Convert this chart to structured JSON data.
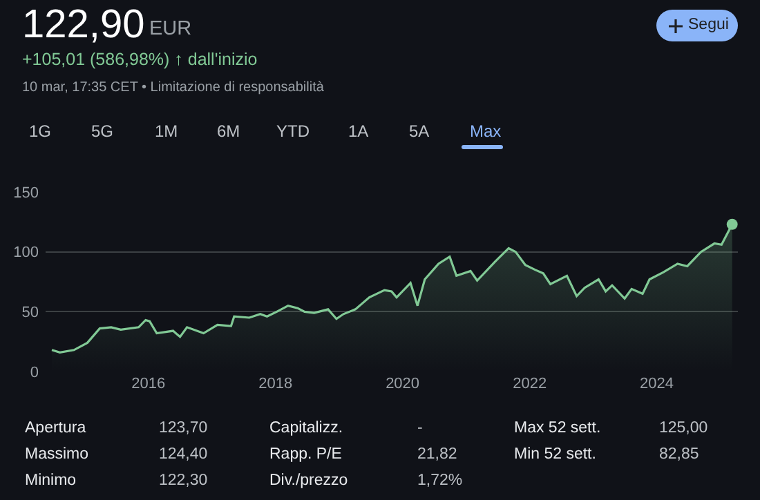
{
  "chart_data": {
    "type": "area",
    "title": "122,90",
    "subtitle": "+105,01 (586,98%) ↑ dall'inizio",
    "annotations": [
      "EUR",
      "10 mar, 17:35 CET • Limitazione di responsabilità",
      "1G",
      "5G",
      "1M",
      "6M",
      "YTD",
      "1A",
      "5A",
      "Max",
      "Segui",
      "Apertura",
      "123,70",
      "Massimo",
      "124,40",
      "Minimo",
      "122,30",
      "Capitalizz.",
      "-",
      "Rapp. P/E",
      "21,82",
      "Div./prezzo",
      "1,72%",
      "Max 52 sett.",
      "125,00",
      "Min 52 sett.",
      "82,85"
    ],
    "series": [
      {
        "color": "#81c995",
        "x": [
          "2014-06-25",
          "2014-08-10",
          "2014-10-30",
          "2015-01-15",
          "2015-03-27",
          "2015-06-01",
          "2015-07-26",
          "2015-11-06",
          "2015-12-16",
          "2016-01-08",
          "2016-02-18",
          "2016-05-22",
          "2016-07-01",
          "2016-08-10",
          "2016-11-13",
          "2017-02-01",
          "2017-04-20",
          "2017-05-08",
          "2017-08-03",
          "2017-10-05",
          "2017-11-13",
          "2018-01-08",
          "2018-03-14",
          "2018-05-08",
          "2018-06-17",
          "2018-08-11",
          "2018-10-30",
          "2018-12-17",
          "2019-01-26",
          "2019-04-05",
          "2019-06-24",
          "2019-09-19",
          "2019-10-30",
          "2019-11-28",
          "2020-02-16",
          "2020-03-27",
          "2020-05-08",
          "2020-07-26",
          "2020-09-28",
          "2020-11-06",
          "2021-01-26",
          "2021-03-05",
          "2021-06-17",
          "2021-09-02",
          "2021-10-12",
          "2021-12-07",
          "2022-02-01",
          "2022-03-20",
          "2022-04-30",
          "2022-08-03",
          "2022-09-28",
          "2022-11-13",
          "2023-02-01",
          "2023-03-14",
          "2023-04-20",
          "2023-07-01",
          "2023-08-10",
          "2023-10-12",
          "2023-11-21",
          "2024-02-09",
          "2024-04-30",
          "2024-06-25",
          "2024-09-12",
          "2024-11-28",
          "2025-01-08",
          "2025-03-10"
        ],
        "values": [
          18,
          16,
          18,
          24,
          36,
          37,
          35,
          37,
          43,
          42,
          32,
          34,
          29,
          37,
          32,
          39,
          38,
          46,
          45,
          48,
          46,
          50,
          55,
          53,
          50,
          49,
          52,
          44,
          48,
          52,
          62,
          68,
          67,
          62,
          74,
          55,
          77,
          90,
          96,
          80,
          84,
          76,
          92,
          103,
          100,
          89,
          85,
          82,
          73,
          80,
          63,
          70,
          77,
          67,
          72,
          61,
          69,
          65,
          77,
          83,
          90,
          88,
          100,
          107,
          106,
          123
        ]
      },
      {
        "type": "scatter",
        "color": "#81c995",
        "marker": "circle",
        "x": [
          "2025-03-10"
        ],
        "values": [
          123
        ]
      }
    ],
    "xlim": [
      "2014-05-20",
      "2025-04-12"
    ],
    "xticks": [
      {
        "value": "2016-01-01",
        "label": "2016"
      },
      {
        "value": "2018-01-01",
        "label": "2018"
      },
      {
        "value": "2020-01-01",
        "label": "2020"
      },
      {
        "value": "2022-01-01",
        "label": "2022"
      },
      {
        "value": "2024-01-01",
        "label": "2024"
      }
    ],
    "ylim": [
      0,
      150
    ],
    "yticks": [
      0,
      50,
      100,
      150
    ],
    "grid": "y"
  }
}
